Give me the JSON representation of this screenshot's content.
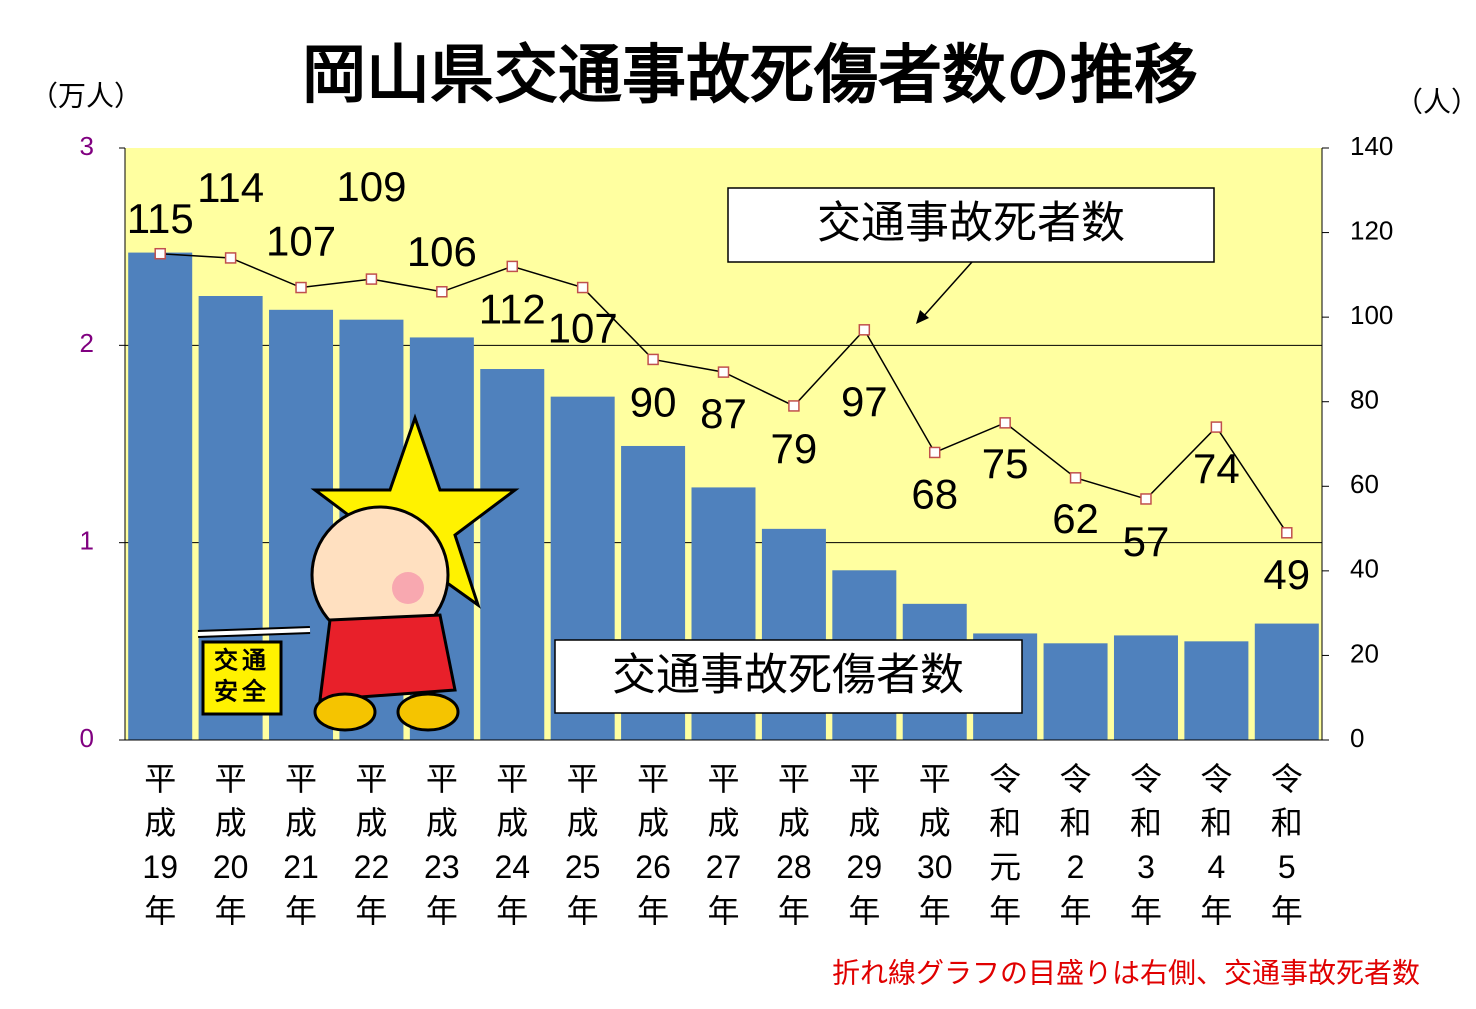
{
  "chart_data": {
    "type": "bar",
    "title": "岡山県交通事故死傷者数の推移",
    "y_label": "（万人）",
    "y2_label": "（人）",
    "note": "折れ線グラフの目盛りは右側、交通事故死者数",
    "sign_text": [
      "交通",
      "安全"
    ],
    "categories": [
      "平成19年",
      "平成20年",
      "平成21年",
      "平成22年",
      "平成23年",
      "平成24年",
      "平成25年",
      "平成26年",
      "平成27年",
      "平成28年",
      "平成29年",
      "平成30年",
      "令和元年",
      "令和2年",
      "令和3年",
      "令和4年",
      "令和5年"
    ],
    "series": [
      {
        "name": "交通事故死傷者数",
        "type": "bar",
        "color": "#4f81bd",
        "values": [
          2.47,
          2.25,
          2.18,
          2.13,
          2.04,
          1.88,
          1.74,
          1.49,
          1.28,
          1.07,
          0.86,
          0.69,
          0.54,
          0.49,
          0.53,
          0.5,
          0.59
        ]
      },
      {
        "name": "交通事故死者数",
        "type": "line",
        "axis": "y2",
        "color": "#000000",
        "marker_color": "#c0504d",
        "values": [
          115,
          114,
          107,
          109,
          106,
          112,
          107,
          90,
          87,
          79,
          97,
          68,
          75,
          62,
          57,
          74,
          49
        ]
      }
    ],
    "ylim": [
      0,
      3
    ],
    "yticks": [
      0,
      1,
      2,
      3
    ],
    "y2lim": [
      0,
      140
    ],
    "y2ticks": [
      0,
      20,
      40,
      60,
      80,
      100,
      120,
      140
    ],
    "grid": true
  }
}
